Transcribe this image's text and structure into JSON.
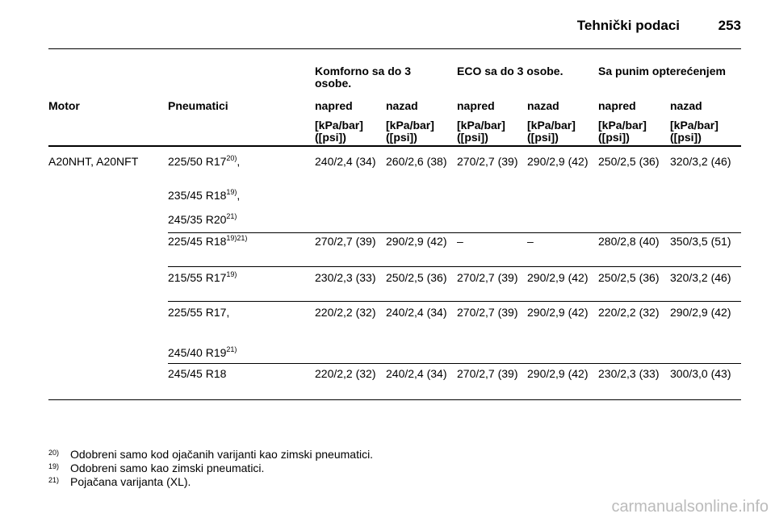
{
  "header": {
    "title": "Tehnički podaci",
    "page": "253"
  },
  "table": {
    "groups": [
      "Komforno sa do 3 osobe.",
      "ECO sa do 3 osobe.",
      "Sa punim opterećenjem"
    ],
    "columns": [
      "Motor",
      "Pneumatici",
      "napred",
      "nazad",
      "napred",
      "nazad",
      "napred",
      "nazad"
    ],
    "units": [
      "[kPa/bar] ([psi])",
      "[kPa/bar] ([psi])",
      "[kPa/bar] ([psi])",
      "[kPa/bar] ([psi])",
      "[kPa/bar] ([psi])",
      "[kPa/bar] ([psi])"
    ],
    "rows": [
      {
        "motor": "A20NHT, A20NFT",
        "tires": [
          {
            "text": "225/50 R17",
            "sup": "20)",
            "after": ","
          },
          {
            "text": "235/45 R18",
            "sup": "19)",
            "after": ","
          },
          {
            "text": "245/35 R20",
            "sup": "21)"
          }
        ],
        "cells": [
          "240/2,4 (34)",
          "260/2,6 (38)",
          "270/2,7 (39)",
          "290/2,9 (42)",
          "250/2,5 (36)",
          "320/3,2 (46)"
        ]
      },
      {
        "tires": [
          {
            "text": "225/45 R18",
            "sup": "19)21)"
          }
        ],
        "cells": [
          "270/2,7 (39)",
          "290/2,9 (42)",
          "–",
          "–",
          "280/2,8 (40)",
          "350/3,5 (51)"
        ]
      },
      {
        "tires": [
          {
            "text": "215/55 R17",
            "sup": "19)"
          }
        ],
        "cells": [
          "230/2,3 (33)",
          "250/2,5 (36)",
          "270/2,7 (39)",
          "290/2,9 (42)",
          "250/2,5 (36)",
          "320/3,2 (46)"
        ]
      },
      {
        "tires": [
          {
            "text": "225/55 R17,"
          },
          {
            "text": "245/40 R19",
            "sup": "21)"
          }
        ],
        "cells": [
          "220/2,2 (32)",
          "240/2,4 (34)",
          "270/2,7 (39)",
          "290/2,9 (42)",
          "220/2,2 (32)",
          "290/2,9 (42)"
        ]
      },
      {
        "tires": [
          {
            "text": "245/45 R18"
          }
        ],
        "cells": [
          "220/2,2 (32)",
          "240/2,4 (34)",
          "270/2,7 (39)",
          "290/2,9 (42)",
          "230/2,3 (33)",
          "300/3,0 (43)"
        ]
      }
    ]
  },
  "footnotes": [
    {
      "mark": "20)",
      "text": "Odobreni samo kod ojačanih varijanti kao zimski pneumatici."
    },
    {
      "mark": "19)",
      "text": "Odobreni samo kao zimski pneumatici."
    },
    {
      "mark": "21)",
      "text": "Pojačana varijanta (XL)."
    }
  ],
  "watermark": "carmanualsonline.info"
}
